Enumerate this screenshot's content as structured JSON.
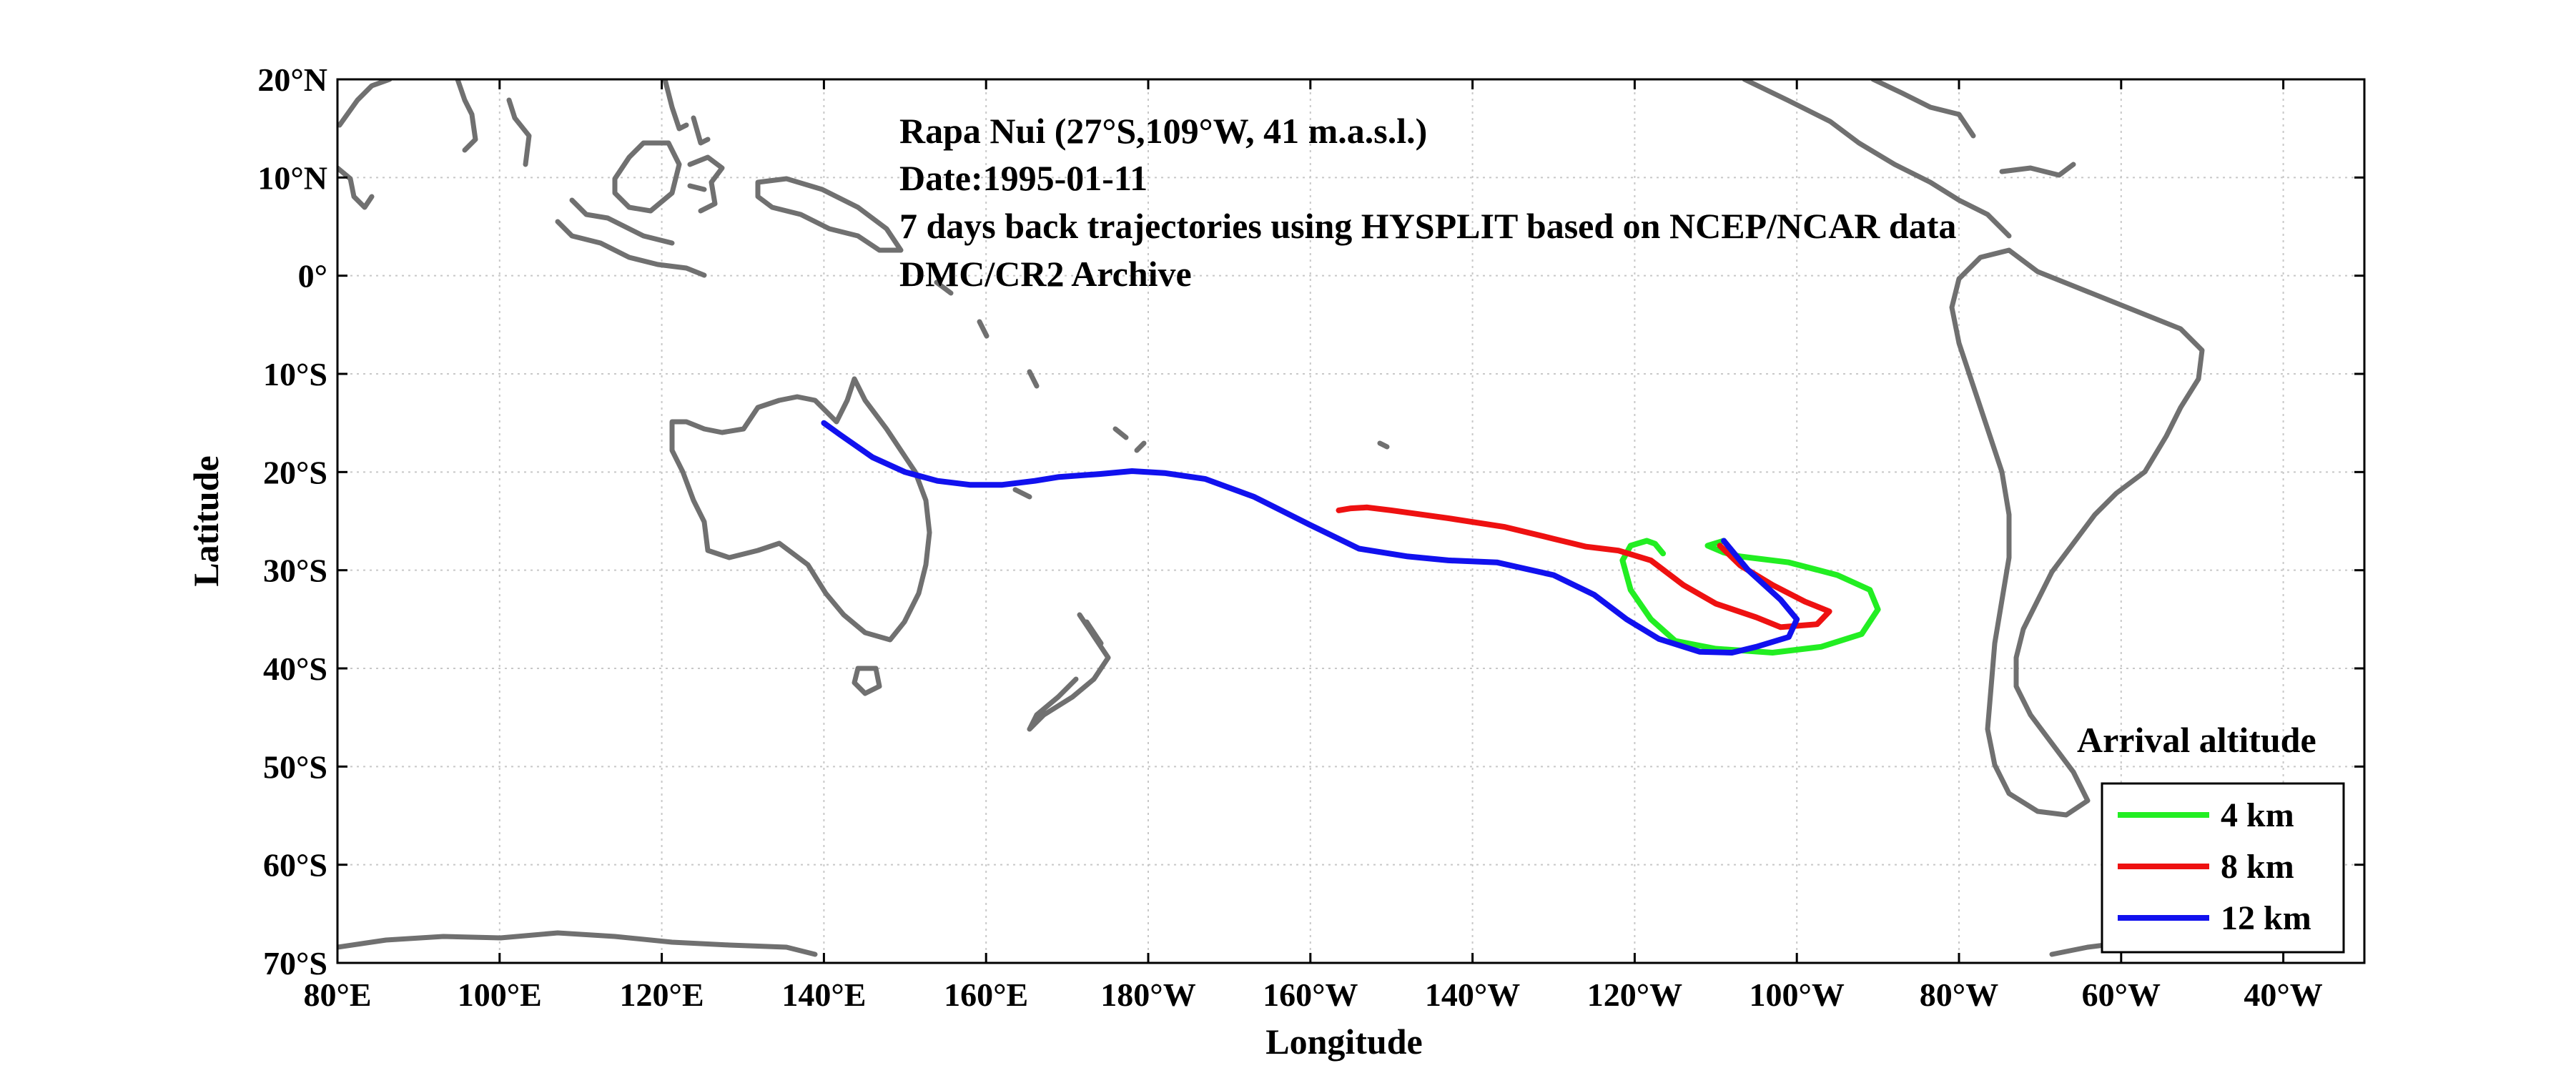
{
  "chart_data": {
    "type": "map-trajectory",
    "xlabel": "Longitude",
    "ylabel": "Latitude",
    "xlim": [
      80,
      330
    ],
    "ylim": [
      -70,
      20
    ],
    "x_ticks": [
      {
        "value": 80,
        "label": "80°E"
      },
      {
        "value": 100,
        "label": "100°E"
      },
      {
        "value": 120,
        "label": "120°E"
      },
      {
        "value": 140,
        "label": "140°E"
      },
      {
        "value": 160,
        "label": "160°E"
      },
      {
        "value": 180,
        "label": "180°W"
      },
      {
        "value": 200,
        "label": "160°W"
      },
      {
        "value": 220,
        "label": "140°W"
      },
      {
        "value": 240,
        "label": "120°W"
      },
      {
        "value": 260,
        "label": "100°W"
      },
      {
        "value": 280,
        "label": "80°W"
      },
      {
        "value": 300,
        "label": "60°W"
      },
      {
        "value": 320,
        "label": "40°W"
      }
    ],
    "y_ticks": [
      {
        "value": 20,
        "label": "20°N"
      },
      {
        "value": 10,
        "label": "10°N"
      },
      {
        "value": 0,
        "label": "0°"
      },
      {
        "value": -10,
        "label": "10°S"
      },
      {
        "value": -20,
        "label": "20°S"
      },
      {
        "value": -30,
        "label": "30°S"
      },
      {
        "value": -40,
        "label": "40°S"
      },
      {
        "value": -50,
        "label": "50°S"
      },
      {
        "value": -60,
        "label": "60°S"
      },
      {
        "value": -70,
        "label": "70°S"
      }
    ],
    "grid": true,
    "annotations": [
      "Rapa Nui (27°S,109°W, 41 m.a.s.l.)",
      "Date:1995-01-11",
      "7 days back trajectories using HYSPLIT based on NCEP/NCAR data",
      "DMC/CR2 Archive"
    ],
    "legend_title": "Arrival altitude",
    "legend_position": "bottom-right",
    "series": [
      {
        "name": "4 km",
        "color": "#22ee22",
        "points": [
          [
            251,
            -27
          ],
          [
            249,
            -27.5
          ],
          [
            251,
            -28.2
          ],
          [
            253,
            -28.6
          ],
          [
            259,
            -29.2
          ],
          [
            265,
            -30.5
          ],
          [
            269,
            -32
          ],
          [
            270,
            -34
          ],
          [
            268,
            -36.5
          ],
          [
            263,
            -37.8
          ],
          [
            257,
            -38.4
          ],
          [
            250,
            -38
          ],
          [
            245,
            -37.2
          ],
          [
            242,
            -35
          ],
          [
            239.5,
            -32
          ],
          [
            238.5,
            -29
          ],
          [
            239.5,
            -27.5
          ],
          [
            241.5,
            -27
          ],
          [
            242.5,
            -27.3
          ],
          [
            243.5,
            -28.3
          ]
        ]
      },
      {
        "name": "8 km",
        "color": "#ee1111",
        "points": [
          [
            250.5,
            -27.5
          ],
          [
            253,
            -29.5
          ],
          [
            257,
            -31.5
          ],
          [
            261,
            -33.2
          ],
          [
            264,
            -34.2
          ],
          [
            262.5,
            -35.5
          ],
          [
            258,
            -35.8
          ],
          [
            255,
            -34.8
          ],
          [
            250,
            -33.4
          ],
          [
            246,
            -31.5
          ],
          [
            242,
            -29
          ],
          [
            238,
            -28
          ],
          [
            234,
            -27.6
          ],
          [
            230,
            -26.8
          ],
          [
            224,
            -25.6
          ],
          [
            217,
            -24.7
          ],
          [
            210,
            -23.9
          ],
          [
            207,
            -23.6
          ],
          [
            205,
            -23.7
          ],
          [
            203.5,
            -23.9
          ]
        ]
      },
      {
        "name": "12 km",
        "color": "#1111ee",
        "points": [
          [
            251,
            -27
          ],
          [
            254,
            -30
          ],
          [
            258,
            -33
          ],
          [
            260,
            -35
          ],
          [
            259,
            -36.8
          ],
          [
            255,
            -37.8
          ],
          [
            252,
            -38.4
          ],
          [
            248,
            -38.3
          ],
          [
            243,
            -37
          ],
          [
            239,
            -35
          ],
          [
            235,
            -32.5
          ],
          [
            230,
            -30.5
          ],
          [
            223,
            -29.2
          ],
          [
            217,
            -29
          ],
          [
            212,
            -28.6
          ],
          [
            206,
            -27.8
          ],
          [
            200,
            -25.4
          ],
          [
            193,
            -22.5
          ],
          [
            187,
            -20.7
          ],
          [
            182,
            -20.1
          ],
          [
            178,
            -19.9
          ],
          [
            174,
            -20.2
          ],
          [
            169,
            -20.5
          ],
          [
            166,
            -20.9
          ],
          [
            162,
            -21.3
          ],
          [
            158,
            -21.3
          ],
          [
            154,
            -20.9
          ],
          [
            150,
            -20
          ],
          [
            146,
            -18.5
          ],
          [
            142,
            -16.2
          ],
          [
            140,
            -15
          ]
        ]
      }
    ],
    "point_order_note": "lon (0-360 east), lat (deg)"
  },
  "title_block": {
    "line1": "Rapa Nui (27°S,109°W, 41 m.a.s.l.)",
    "line2": "Date:1995-01-11",
    "line3": "7 days back trajectories using HYSPLIT based on NCEP/NCAR data",
    "line4": "DMC/CR2 Archive"
  },
  "legend": {
    "title": "Arrival altitude",
    "items": [
      {
        "label": "4 km",
        "color": "#22ee22"
      },
      {
        "label": "8 km",
        "color": "#ee1111"
      },
      {
        "label": "12 km",
        "color": "#1111ee"
      }
    ]
  },
  "colors": {
    "coast": "#707070",
    "grid": "#c8c8c8",
    "frame": "#000000"
  }
}
